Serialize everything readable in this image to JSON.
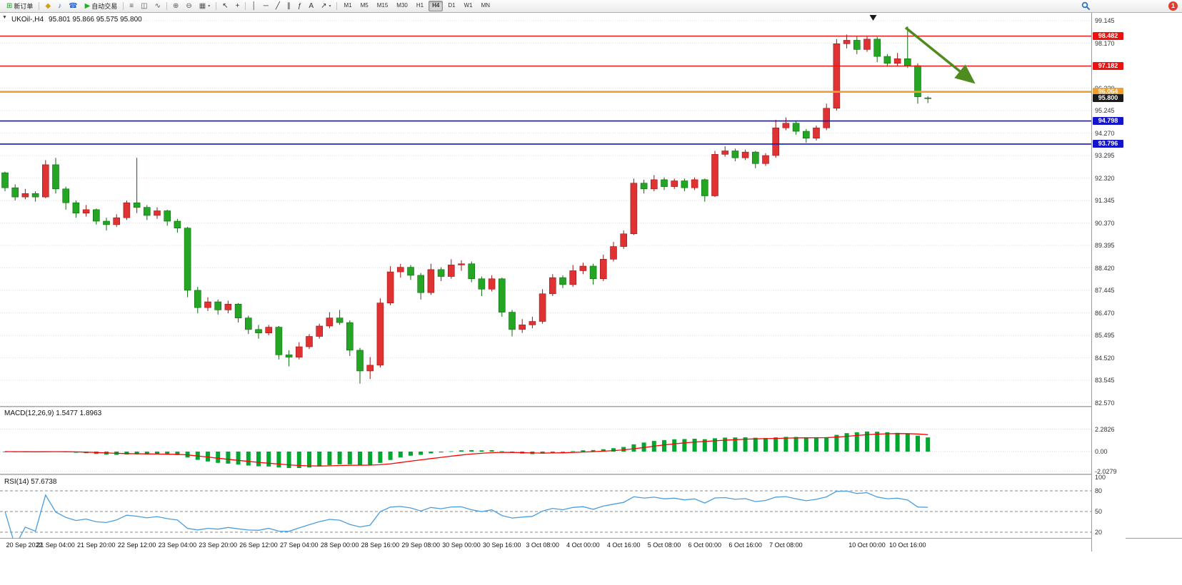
{
  "icons": {
    "one_click": "▼",
    "caret": "▾"
  },
  "colors": {
    "bull": "#e03232",
    "bull_dark": "#9c1414",
    "bear": "#24a524",
    "bear_dark": "#0b6b0b",
    "grid": "#dedede",
    "accent_red": "#ee1111",
    "accent_blue": "#1414cc",
    "accent_orange": "#f0a030"
  },
  "toolbar": {
    "items": [
      {
        "kind": "button",
        "name": "new-order-button",
        "icon": "⊞",
        "icon_color": "#1a9c1a",
        "label": "新订单"
      },
      {
        "kind": "sep"
      },
      {
        "kind": "button",
        "name": "metaeditor-button",
        "icon": "◆",
        "icon_color": "#cf9f1f"
      },
      {
        "kind": "button",
        "name": "sound-button",
        "icon": "♪",
        "icon_color": "#2a62c9"
      },
      {
        "kind": "button",
        "name": "support-button",
        "icon": "☎",
        "icon_color": "#2a62c9"
      },
      {
        "kind": "button",
        "name": "auto-trading-button",
        "icon": "▶",
        "icon_color": "#21b121",
        "label": "自动交易"
      },
      {
        "kind": "sep"
      },
      {
        "kind": "button",
        "name": "bars-chart-button",
        "icon": "≡",
        "icon_color": "#555"
      },
      {
        "kind": "button",
        "name": "candlestick-chart-button",
        "icon": "◫",
        "icon_color": "#555"
      },
      {
        "kind": "button",
        "name": "line-chart-button",
        "icon": "∿",
        "icon_color": "#555"
      },
      {
        "kind": "sep"
      },
      {
        "kind": "button",
        "name": "zoom-in-button",
        "icon": "⊕",
        "icon_color": "#555"
      },
      {
        "kind": "button",
        "name": "zoom-out-button",
        "icon": "⊖",
        "icon_color": "#555"
      },
      {
        "kind": "button",
        "name": "tile-windows-button",
        "icon": "▦",
        "icon_color": "#555",
        "caret": true
      },
      {
        "kind": "sep"
      },
      {
        "kind": "button",
        "name": "cursor-button",
        "icon": "↖",
        "icon_color": "#333"
      },
      {
        "kind": "button",
        "name": "crosshair-button",
        "icon": "+",
        "icon_color": "#333"
      },
      {
        "kind": "sep"
      },
      {
        "kind": "button",
        "name": "vertical-line-button",
        "icon": "│",
        "icon_color": "#333"
      },
      {
        "kind": "button",
        "name": "horizontal-line-button",
        "icon": "─",
        "icon_color": "#333"
      },
      {
        "kind": "button",
        "name": "trendline-button",
        "icon": "╱",
        "icon_color": "#333"
      },
      {
        "kind": "button",
        "name": "channel-button",
        "icon": "∥",
        "icon_color": "#333"
      },
      {
        "kind": "button",
        "name": "fibonacci-button",
        "icon": "ƒ",
        "icon_color": "#333"
      },
      {
        "kind": "button",
        "name": "text-button",
        "icon": "A",
        "icon_color": "#333"
      },
      {
        "kind": "button",
        "name": "arrows-button",
        "icon": "↗",
        "icon_color": "#333",
        "caret": true
      },
      {
        "kind": "sep"
      }
    ],
    "timeframes": [
      "M1",
      "M5",
      "M15",
      "M30",
      "H1",
      "H4",
      "D1",
      "W1",
      "MN"
    ],
    "active_timeframe": "H4",
    "notification_count": "1"
  },
  "chart_data": {
    "type": "candlestick",
    "symbol": "UKOil-",
    "timeframe": "H4",
    "symbol_tf_label": "UKOil-,H4",
    "ohlc_label": "95.801 95.866 95.575 95.800",
    "price_axis_ticks": [
      "99.145",
      "98.170",
      "97.195",
      "96.220",
      "95.245",
      "94.270",
      "93.295",
      "92.320",
      "91.345",
      "90.370",
      "89.395",
      "88.420",
      "87.445",
      "86.470",
      "85.495",
      "84.520",
      "83.545",
      "82.570"
    ],
    "current_price": {
      "value": 95.8,
      "label": "95.800"
    },
    "horizontal_levels": [
      {
        "value": 98.482,
        "label": "98.482",
        "color": "#ee1111",
        "width": 1.4
      },
      {
        "value": 97.182,
        "label": "97.182",
        "color": "#ee1111",
        "width": 1.4
      },
      {
        "value": 96.064,
        "label": "96.064",
        "color": "#f0a030",
        "width": 2.6
      },
      {
        "value": 94.798,
        "label": "94.798",
        "color": "#1414cc",
        "width": 1.6
      },
      {
        "value": 93.796,
        "label": "93.796",
        "color": "#1414cc",
        "width": 1.6
      }
    ],
    "time_marker_index": 85.6,
    "arrow_annotation": {
      "from_index": 88.8,
      "from_price": 98.85,
      "to_index": 95.3,
      "to_price": 96.55,
      "color": "#4f8c1f"
    },
    "candles": [
      [
        92.55,
        92.6,
        91.75,
        91.9
      ],
      [
        91.9,
        92.05,
        91.35,
        91.5
      ],
      [
        91.5,
        91.85,
        91.4,
        91.65
      ],
      [
        91.65,
        91.75,
        91.3,
        91.5
      ],
      [
        91.5,
        93.1,
        91.45,
        92.9
      ],
      [
        92.9,
        93.2,
        91.65,
        91.85
      ],
      [
        91.85,
        91.95,
        90.95,
        91.25
      ],
      [
        91.25,
        91.35,
        90.6,
        90.8
      ],
      [
        90.8,
        91.15,
        90.65,
        90.95
      ],
      [
        90.95,
        91.0,
        90.3,
        90.45
      ],
      [
        90.45,
        90.6,
        90.05,
        90.3
      ],
      [
        90.3,
        90.75,
        90.2,
        90.6
      ],
      [
        90.6,
        91.35,
        90.5,
        91.25
      ],
      [
        91.25,
        93.2,
        90.8,
        91.05
      ],
      [
        91.05,
        91.15,
        90.5,
        90.7
      ],
      [
        90.7,
        91.05,
        90.55,
        90.9
      ],
      [
        90.9,
        90.95,
        90.25,
        90.45
      ],
      [
        90.45,
        90.55,
        89.95,
        90.15
      ],
      [
        90.15,
        90.2,
        87.15,
        87.45
      ],
      [
        87.45,
        87.6,
        86.45,
        86.7
      ],
      [
        86.7,
        87.15,
        86.55,
        86.95
      ],
      [
        86.95,
        87.05,
        86.4,
        86.6
      ],
      [
        86.6,
        87.0,
        86.45,
        86.85
      ],
      [
        86.85,
        86.9,
        86.05,
        86.25
      ],
      [
        86.25,
        86.35,
        85.55,
        85.75
      ],
      [
        85.75,
        85.95,
        85.35,
        85.6
      ],
      [
        85.6,
        85.95,
        85.5,
        85.85
      ],
      [
        85.85,
        85.9,
        84.45,
        84.65
      ],
      [
        84.65,
        84.85,
        84.15,
        84.55
      ],
      [
        84.55,
        85.2,
        84.45,
        85.0
      ],
      [
        85.0,
        85.55,
        84.9,
        85.45
      ],
      [
        85.45,
        86.0,
        85.35,
        85.9
      ],
      [
        85.9,
        86.5,
        85.8,
        86.25
      ],
      [
        86.25,
        86.6,
        85.95,
        86.05
      ],
      [
        86.05,
        86.15,
        84.6,
        84.85
      ],
      [
        84.85,
        84.95,
        83.4,
        83.95
      ],
      [
        83.95,
        84.55,
        83.6,
        84.2
      ],
      [
        84.2,
        87.1,
        84.1,
        86.9
      ],
      [
        86.9,
        88.5,
        86.8,
        88.25
      ],
      [
        88.25,
        88.6,
        88.0,
        88.45
      ],
      [
        88.45,
        88.55,
        87.9,
        88.1
      ],
      [
        88.1,
        88.2,
        87.05,
        87.35
      ],
      [
        87.35,
        88.6,
        87.25,
        88.35
      ],
      [
        88.35,
        88.45,
        87.85,
        88.05
      ],
      [
        88.05,
        88.8,
        87.95,
        88.55
      ],
      [
        88.55,
        88.75,
        88.3,
        88.6
      ],
      [
        88.6,
        88.7,
        87.8,
        87.95
      ],
      [
        87.95,
        88.05,
        87.2,
        87.5
      ],
      [
        87.5,
        88.1,
        87.4,
        87.95
      ],
      [
        87.95,
        88.0,
        86.3,
        86.5
      ],
      [
        86.5,
        86.6,
        85.45,
        85.75
      ],
      [
        85.75,
        86.2,
        85.6,
        85.95
      ],
      [
        85.95,
        86.3,
        85.8,
        86.1
      ],
      [
        86.1,
        87.5,
        86.0,
        87.3
      ],
      [
        87.3,
        88.15,
        87.2,
        88.0
      ],
      [
        88.0,
        88.1,
        87.55,
        87.7
      ],
      [
        87.7,
        88.55,
        87.6,
        88.3
      ],
      [
        88.3,
        88.65,
        88.15,
        88.5
      ],
      [
        88.5,
        88.6,
        87.7,
        87.95
      ],
      [
        87.95,
        89.0,
        87.85,
        88.8
      ],
      [
        88.8,
        89.55,
        88.7,
        89.35
      ],
      [
        89.35,
        90.05,
        89.25,
        89.9
      ],
      [
        89.9,
        92.3,
        89.85,
        92.1
      ],
      [
        92.1,
        92.25,
        91.65,
        91.85
      ],
      [
        91.85,
        92.45,
        91.75,
        92.25
      ],
      [
        92.25,
        92.35,
        91.8,
        91.95
      ],
      [
        91.95,
        92.3,
        91.85,
        92.2
      ],
      [
        92.2,
        92.3,
        91.75,
        91.9
      ],
      [
        91.9,
        92.35,
        91.8,
        92.25
      ],
      [
        92.25,
        92.3,
        91.3,
        91.55
      ],
      [
        91.55,
        93.5,
        91.5,
        93.35
      ],
      [
        93.35,
        93.7,
        93.25,
        93.5
      ],
      [
        93.5,
        93.6,
        93.05,
        93.2
      ],
      [
        93.2,
        93.55,
        93.1,
        93.45
      ],
      [
        93.45,
        93.5,
        92.75,
        92.95
      ],
      [
        92.95,
        93.4,
        92.85,
        93.3
      ],
      [
        93.3,
        94.85,
        93.2,
        94.5
      ],
      [
        94.5,
        94.95,
        94.4,
        94.7
      ],
      [
        94.7,
        94.8,
        94.2,
        94.35
      ],
      [
        94.35,
        94.45,
        93.85,
        94.05
      ],
      [
        94.05,
        94.6,
        93.95,
        94.5
      ],
      [
        94.5,
        95.55,
        94.4,
        95.35
      ],
      [
        95.35,
        98.35,
        95.25,
        98.15
      ],
      [
        98.15,
        98.55,
        97.95,
        98.3
      ],
      [
        98.3,
        98.5,
        97.7,
        97.9
      ],
      [
        97.9,
        98.5,
        97.8,
        98.35
      ],
      [
        98.35,
        98.45,
        97.35,
        97.6
      ],
      [
        97.6,
        97.7,
        97.15,
        97.3
      ],
      [
        97.3,
        97.75,
        97.2,
        97.5
      ],
      [
        97.5,
        98.9,
        97.1,
        97.2
      ],
      [
        97.2,
        97.3,
        95.55,
        95.85
      ],
      [
        95.801,
        95.866,
        95.575,
        95.8
      ]
    ],
    "time_labels": [
      {
        "index": 1,
        "label": "20 Sep 2022"
      },
      {
        "index": 5,
        "label": "21 Sep 04:00"
      },
      {
        "index": 9,
        "label": "21 Sep 20:00"
      },
      {
        "index": 13,
        "label": "22 Sep 12:00"
      },
      {
        "index": 17,
        "label": "23 Sep 04:00"
      },
      {
        "index": 21,
        "label": "23 Sep 20:00"
      },
      {
        "index": 25,
        "label": "26 Sep 12:00"
      },
      {
        "index": 29,
        "label": "27 Sep 04:00"
      },
      {
        "index": 33,
        "label": "28 Sep 00:00"
      },
      {
        "index": 37,
        "label": "28 Sep 16:00"
      },
      {
        "index": 41,
        "label": "29 Sep 08:00"
      },
      {
        "index": 45,
        "label": "30 Sep 00:00"
      },
      {
        "index": 49,
        "label": "30 Sep 16:00"
      },
      {
        "index": 53,
        "label": "3 Oct 08:00"
      },
      {
        "index": 57,
        "label": "4 Oct 00:00"
      },
      {
        "index": 61,
        "label": "4 Oct 16:00"
      },
      {
        "index": 65,
        "label": "5 Oct 08:00"
      },
      {
        "index": 69,
        "label": "6 Oct 00:00"
      },
      {
        "index": 73,
        "label": "6 Oct 16:00"
      },
      {
        "index": 77,
        "label": "7 Oct 08:00"
      },
      {
        "index": 85,
        "label": "10 Oct 00:00"
      },
      {
        "index": 89,
        "label": "10 Oct 16:00"
      }
    ],
    "indicators": [
      {
        "name": "MACD",
        "params": "12,26,9",
        "display": "MACD(12,26,9) 1.5477 1.8963",
        "values": [
          "1.5477",
          "1.8963"
        ],
        "axis_ticks": [
          "2.2826",
          "0.00",
          "-2.0279"
        ],
        "histogram_color": "#00a832",
        "signal_color": "#ff0000"
      },
      {
        "name": "RSI",
        "params": "14",
        "display": "RSI(14) 57.6738",
        "values": [
          "57.6738"
        ],
        "axis_ticks": [
          "100",
          "80",
          "50",
          "20"
        ],
        "levels": [
          80,
          50,
          20
        ],
        "line_color": "#4a9ede"
      }
    ]
  }
}
